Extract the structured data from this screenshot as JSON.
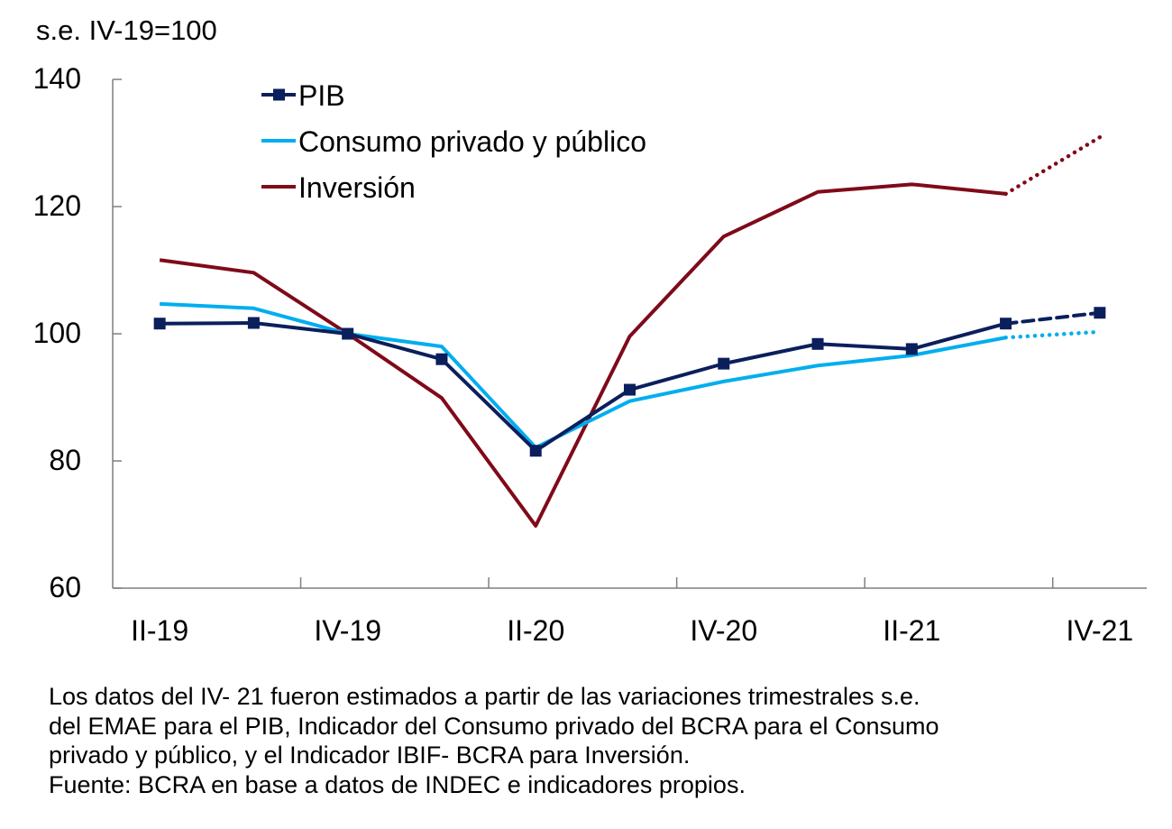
{
  "chart_data": {
    "type": "line",
    "title": "",
    "ylabel": "s.e. IV-19=100",
    "xlabel": "",
    "ylim": [
      60,
      140
    ],
    "yticks": [
      60,
      80,
      100,
      120,
      140
    ],
    "x": [
      "II-19",
      "III-19",
      "IV-19",
      "I-20",
      "II-20",
      "III-20",
      "IV-20",
      "I-21",
      "II-21",
      "III-21",
      "IV-21"
    ],
    "xtick_labels": [
      "II-19",
      "IV-19",
      "II-20",
      "IV-20",
      "II-21",
      "IV-21"
    ],
    "grid": false,
    "legend_position": "top-left",
    "estimated_from_index": 9,
    "series": [
      {
        "name": "PIB",
        "color": "#0a1f5c",
        "marker": "square",
        "estimate_style": "dashed",
        "values": [
          101.6,
          101.7,
          100.0,
          96.0,
          81.6,
          91.2,
          95.3,
          98.4,
          97.6,
          101.6,
          103.3
        ]
      },
      {
        "name": "Consumo privado y público",
        "color": "#00aeef",
        "marker": "none",
        "estimate_style": "dotted",
        "values": [
          104.7,
          104.0,
          100.0,
          98.0,
          82.1,
          89.4,
          92.5,
          95.0,
          96.6,
          99.4,
          100.3
        ]
      },
      {
        "name": "Inversión",
        "color": "#7f0a19",
        "marker": "none",
        "estimate_style": "dotted",
        "values": [
          111.6,
          109.6,
          100.0,
          89.9,
          69.8,
          99.6,
          115.3,
          122.3,
          123.5,
          122.0,
          130.9
        ]
      }
    ]
  },
  "notes": {
    "lines": [
      "Los datos del IV- 21 fueron estimados a partir de las variaciones trimestrales s.e.",
      "del EMAE para el PIB, Indicador del Consumo privado del BCRA para el Consumo",
      "privado y público, y el Indicador IBIF- BCRA para Inversión.",
      "Fuente: BCRA en base a datos de INDEC e indicadores propios."
    ]
  }
}
